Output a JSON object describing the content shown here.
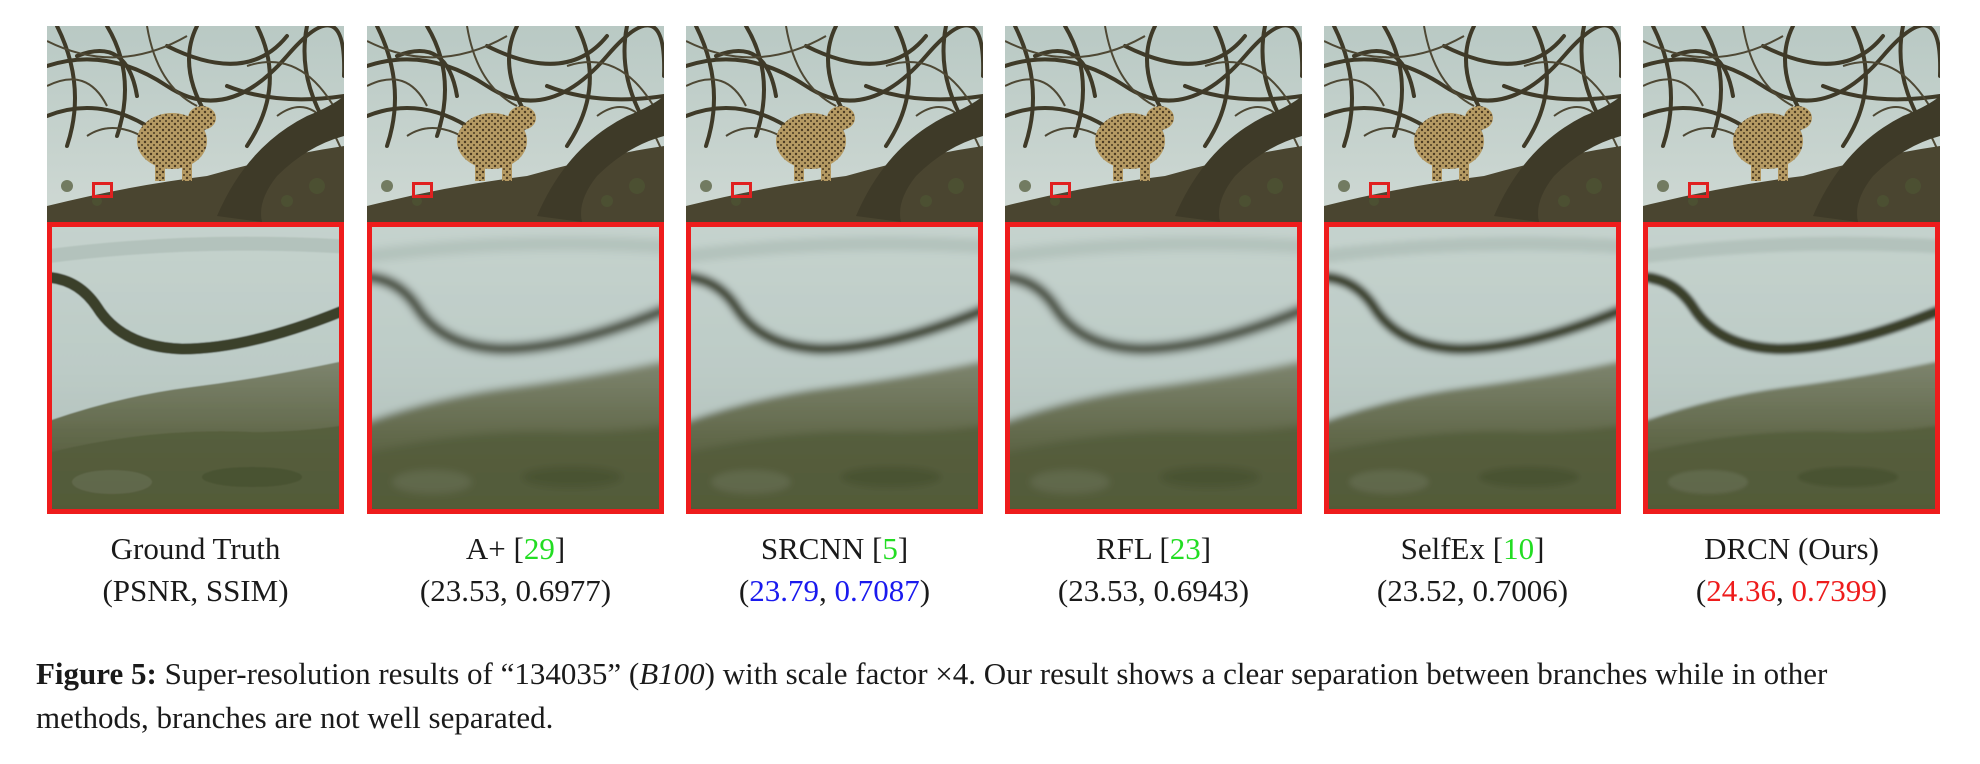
{
  "panels": [
    {
      "method": "Ground Truth",
      "ref": "",
      "metric_open": "(",
      "psnr": "PSNR",
      "sep": ", ",
      "ssim": "SSIM",
      "metric_close": ")",
      "metric_color": "default",
      "blur": 0.6
    },
    {
      "method": "A+ ",
      "ref_open": "[",
      "ref": "29",
      "ref_close": "]",
      "metric_open": "(",
      "psnr": "23.53",
      "sep": ", ",
      "ssim": "0.6977",
      "metric_close": ")",
      "metric_color": "default",
      "blur": 4
    },
    {
      "method": "SRCNN ",
      "ref_open": "[",
      "ref": "5",
      "ref_close": "]",
      "metric_open": "(",
      "psnr": "23.79",
      "sep": ", ",
      "ssim": "0.7087",
      "metric_close": ")",
      "metric_color": "blue",
      "blur": 3.5
    },
    {
      "method": "RFL ",
      "ref_open": "[",
      "ref": "23",
      "ref_close": "]",
      "metric_open": "(",
      "psnr": "23.53",
      "sep": ", ",
      "ssim": "0.6943",
      "metric_close": ")",
      "metric_color": "default",
      "blur": 4
    },
    {
      "method": "SelfEx ",
      "ref_open": "[",
      "ref": "10",
      "ref_close": "]",
      "metric_open": "(",
      "psnr": "23.52",
      "sep": ", ",
      "ssim": "0.7006",
      "metric_close": ")",
      "metric_color": "default",
      "blur": 3
    },
    {
      "method": "DRCN (Ours)",
      "ref": "",
      "metric_open": "(",
      "psnr": "24.36",
      "sep": ", ",
      "ssim": "0.7399",
      "metric_close": ")",
      "metric_color": "red",
      "blur": 1.6
    }
  ],
  "caption": {
    "label": "Figure 5:",
    "text_1": " Super-resolution results of “134035” (",
    "dataset": "B100",
    "text_2": ") with scale factor ×4. Our result shows a clear separation between branches while in other methods, branches are not well separated."
  },
  "colors": {
    "roi_border": "#ee1c1c",
    "ref_green": "#22dd22",
    "second_best_blue": "#1a1aee",
    "best_red": "#ee1c1c"
  }
}
